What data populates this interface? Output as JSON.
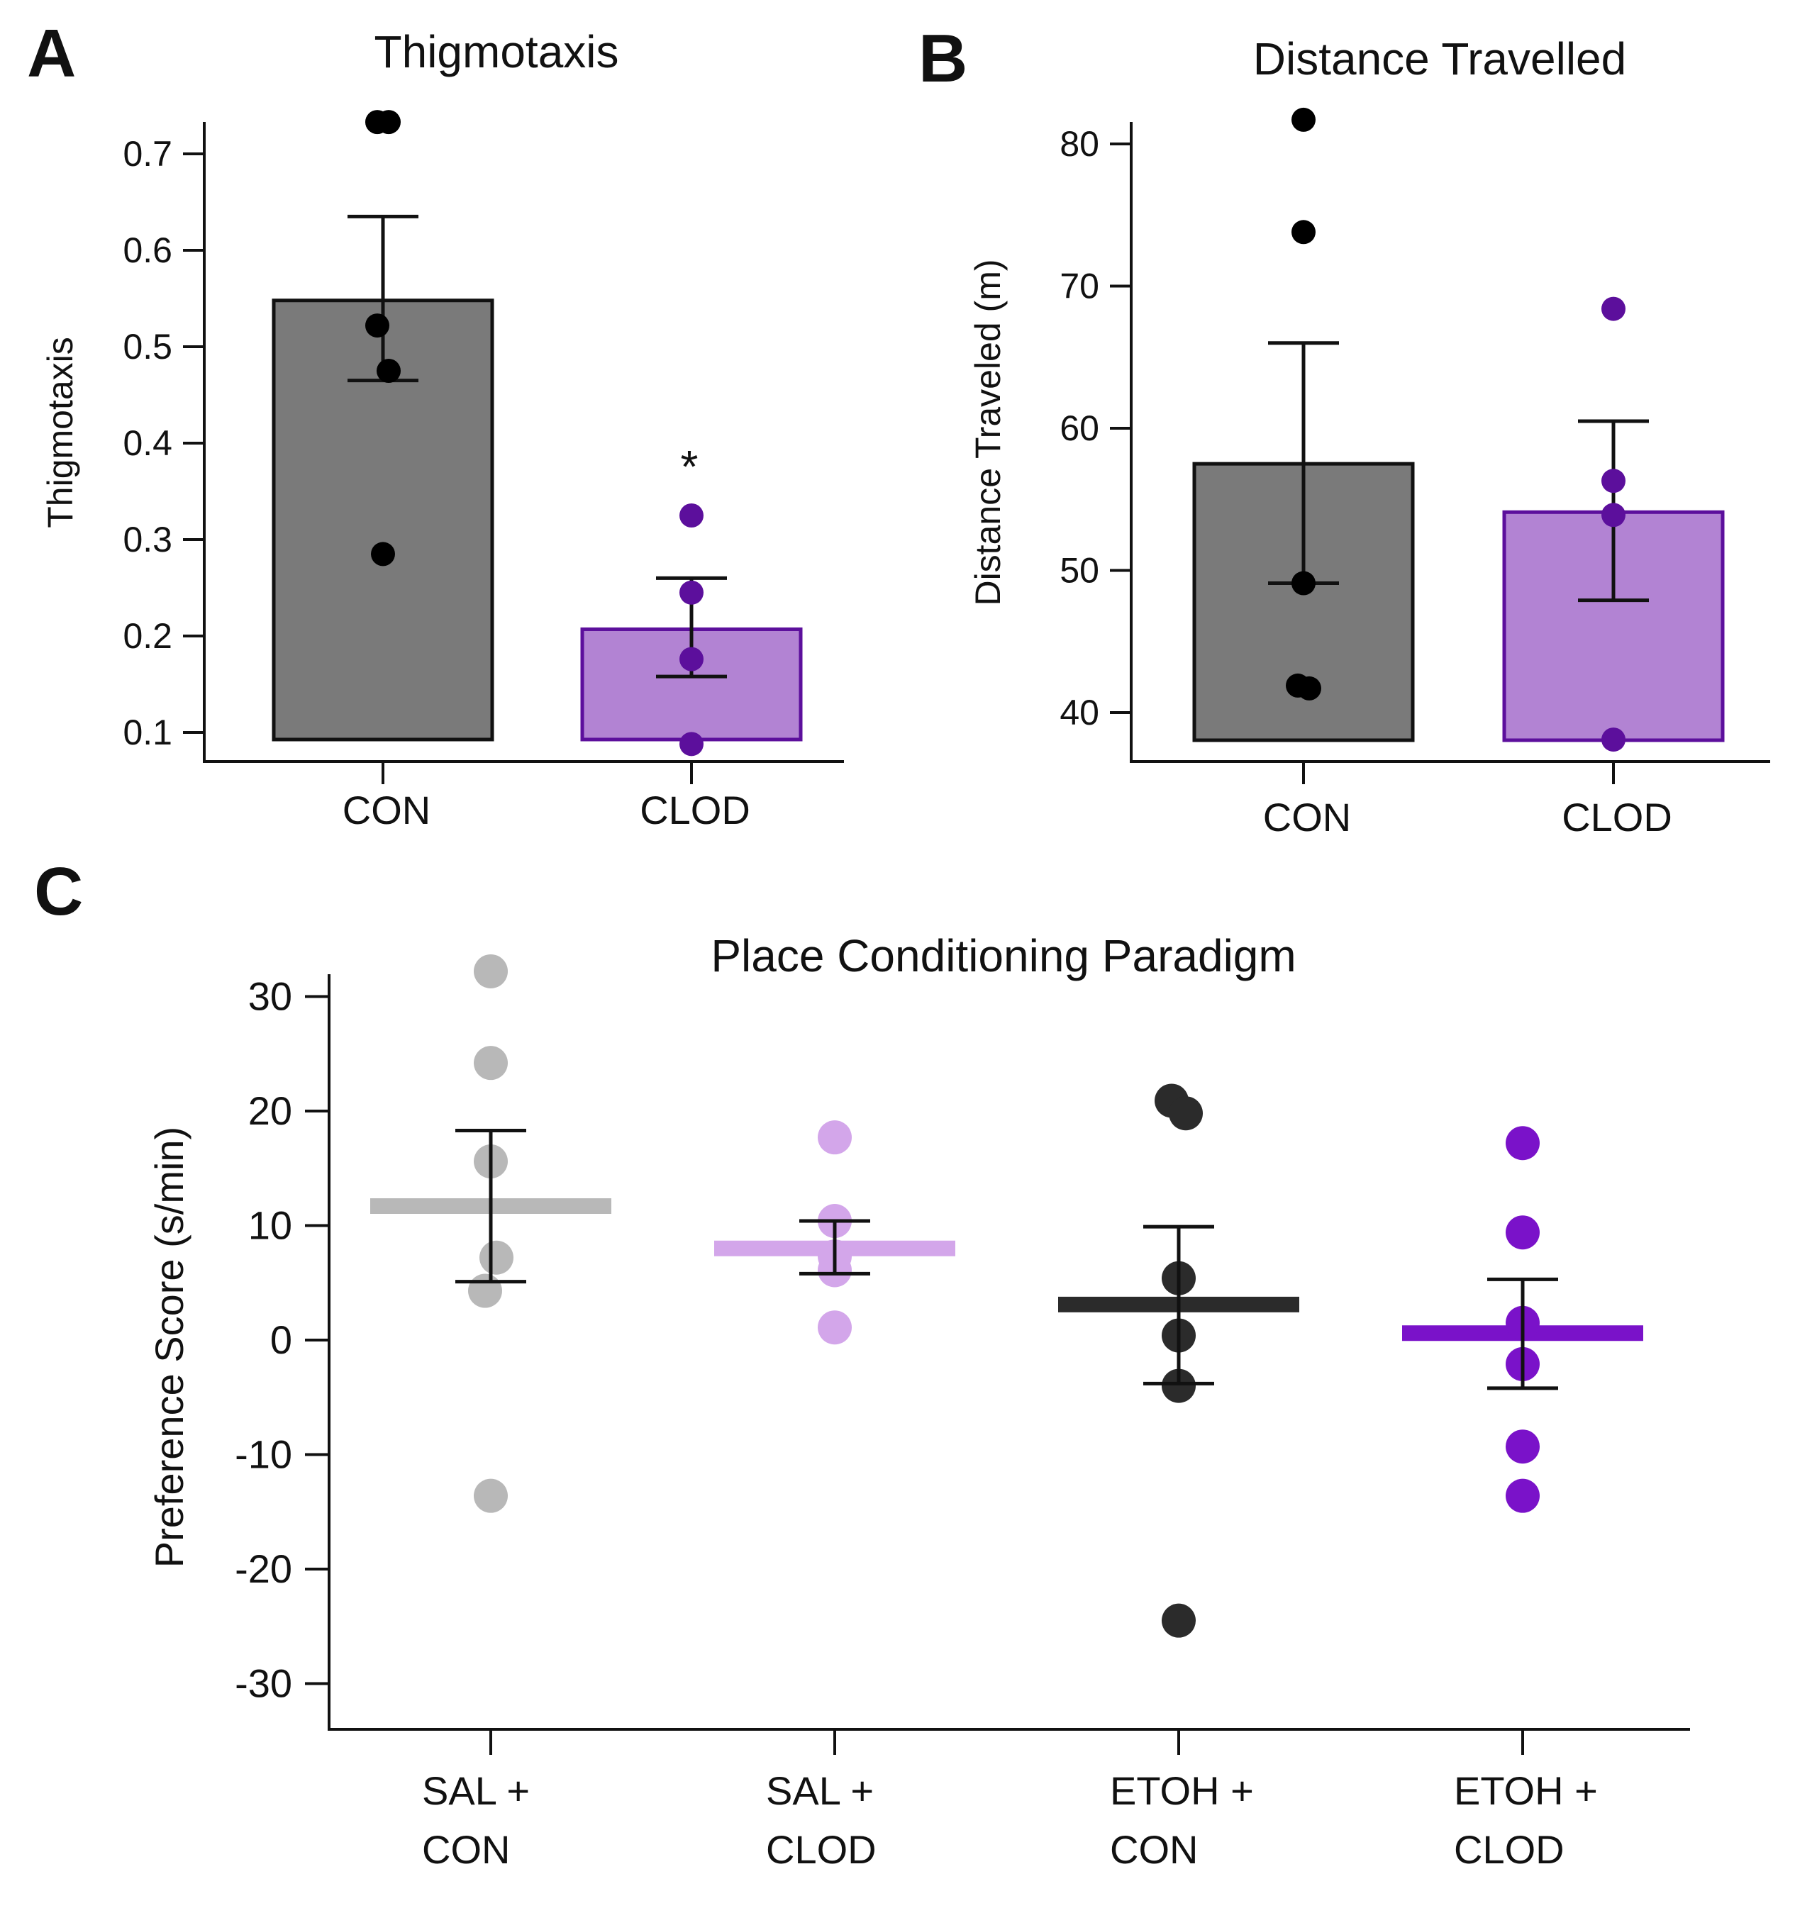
{
  "chart_data": [
    {
      "panel": "A",
      "type": "bar",
      "title": "Thigmotaxis",
      "xlabel": "",
      "ylabel": "Thigmotaxis",
      "ylim": [
        0.085,
        0.735
      ],
      "yticks": [
        "0.1",
        "0.2",
        "0.3",
        "0.4",
        "0.5",
        "0.6",
        "0.7"
      ],
      "categories": [
        "CON",
        "CLOD"
      ],
      "bars": [
        {
          "category": "CON",
          "mean": 0.548,
          "sem_low": 0.465,
          "sem_high": 0.635,
          "fill": "#7a7a7a",
          "edge": "#111111",
          "point_color": "#000000",
          "points": [
            0.733,
            0.733,
            0.522,
            0.475,
            0.285
          ]
        },
        {
          "category": "CLOD",
          "mean": 0.207,
          "sem_low": 0.158,
          "sem_high": 0.26,
          "fill": "#b283d3",
          "edge": "#5c0f9c",
          "point_color": "#5c0f9c",
          "points": [
            0.325,
            0.245,
            0.176,
            0.088
          ]
        }
      ],
      "annotation": "*"
    },
    {
      "panel": "B",
      "type": "bar",
      "title": "Distance Travelled",
      "xlabel": "",
      "ylabel": "Distance Traveled (m)",
      "ylim": [
        38,
        82
      ],
      "yticks": [
        "40",
        "50",
        "60",
        "70",
        "80"
      ],
      "categories": [
        "CON",
        "CLOD"
      ],
      "bars": [
        {
          "category": "CON",
          "mean": 57.5,
          "sem_low": 49.1,
          "sem_high": 66.0,
          "fill": "#7a7a7a",
          "edge": "#111111",
          "point_color": "#000000",
          "points": [
            81.7,
            73.8,
            49.1,
            41.9,
            41.7
          ]
        },
        {
          "category": "CLOD",
          "mean": 54.1,
          "sem_low": 47.9,
          "sem_high": 60.5,
          "fill": "#b283d3",
          "edge": "#5c0f9c",
          "point_color": "#5c0f9c",
          "points": [
            68.4,
            56.3,
            53.9,
            38.1
          ]
        }
      ]
    },
    {
      "panel": "C",
      "type": "scatter",
      "title": "Place Conditioning Paradigm",
      "xlabel": "",
      "ylabel": "Preference Score (s/min)",
      "ylim": [
        -32,
        32
      ],
      "yticks": [
        "30",
        "20",
        "10",
        "0",
        "-10",
        "-20",
        "-30"
      ],
      "categories": [
        "SAL + CON",
        "SAL + CLOD",
        "ETOH + CON",
        "ETOH + CLOD"
      ],
      "groups": [
        {
          "line1": "SAL +",
          "line2": "CON",
          "mean": 11.7,
          "sem_low": 5.1,
          "sem_high": 18.3,
          "color": "#b8b8b8",
          "points": [
            32.2,
            24.2,
            15.6,
            7.2,
            4.3,
            -13.6
          ]
        },
        {
          "line1": "SAL +",
          "line2": "CLOD",
          "mean": 8.0,
          "sem_low": 5.8,
          "sem_high": 10.4,
          "color": "#d3a6ea",
          "points": [
            17.7,
            10.4,
            7.3,
            6.1,
            1.1
          ]
        },
        {
          "line1": "ETOH +",
          "line2": "CON",
          "mean": 3.1,
          "sem_low": -3.8,
          "sem_high": 9.9,
          "color": "#2b2b2b",
          "points": [
            20.9,
            19.8,
            5.4,
            0.4,
            -4.0,
            -24.5
          ]
        },
        {
          "line1": "ETOH +",
          "line2": "CLOD",
          "mean": 0.6,
          "sem_low": -4.2,
          "sem_high": 5.3,
          "color": "#7a12c9",
          "points": [
            17.2,
            9.4,
            1.5,
            -2.1,
            -9.3,
            -13.6
          ]
        }
      ]
    }
  ]
}
